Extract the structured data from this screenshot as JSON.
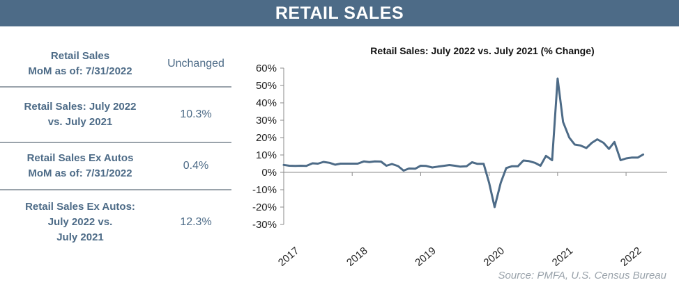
{
  "banner": {
    "title": "RETAIL SALES"
  },
  "stats": [
    {
      "label": "Retail Sales\nMoM as of: 7/31/2022",
      "value": "Unchanged"
    },
    {
      "label": "Retail Sales: July 2022\nvs. July 2021",
      "value": "10.3%"
    },
    {
      "label": "Retail Sales Ex Autos\nMoM as of: 7/31/2022",
      "value": "0.4%"
    },
    {
      "label": "Retail Sales Ex Autos:\nJuly 2022 vs.\nJuly 2021",
      "value": "12.3%"
    }
  ],
  "source": "Source:  PMFA,  U.S. Census Bureau",
  "chart_data": {
    "type": "line",
    "title": "Retail Sales: July 2022 vs. July 2021 (% Change)",
    "xlabel": "",
    "ylabel": "",
    "ylim": [
      -30,
      60
    ],
    "xlim": [
      2017.0,
      2022.6
    ],
    "y_ticks": [
      60,
      50,
      40,
      30,
      20,
      10,
      0,
      -10,
      -20,
      -30
    ],
    "y_tick_labels": [
      "60%",
      "50%",
      "40%",
      "30%",
      "20%",
      "10%",
      "0%",
      "-10%",
      "-20%",
      "-30%"
    ],
    "x_ticks": [
      2017,
      2018,
      2019,
      2020,
      2021,
      2022
    ],
    "x_tick_labels": [
      "2017",
      "2018",
      "2019",
      "2020",
      "2021",
      "2022"
    ],
    "grid": false,
    "line_color": "#4d6b87",
    "series": [
      {
        "values": [
          [
            2017.0,
            4.3
          ],
          [
            2017.08,
            3.8
          ],
          [
            2017.17,
            3.7
          ],
          [
            2017.25,
            3.8
          ],
          [
            2017.33,
            3.7
          ],
          [
            2017.42,
            5.2
          ],
          [
            2017.5,
            5.0
          ],
          [
            2017.58,
            6.0
          ],
          [
            2017.67,
            5.5
          ],
          [
            2017.75,
            4.4
          ],
          [
            2017.83,
            5.0
          ],
          [
            2017.92,
            5.0
          ],
          [
            2018.0,
            5.0
          ],
          [
            2018.08,
            5.0
          ],
          [
            2018.17,
            6.3
          ],
          [
            2018.25,
            5.9
          ],
          [
            2018.33,
            6.3
          ],
          [
            2018.42,
            6.2
          ],
          [
            2018.5,
            3.8
          ],
          [
            2018.58,
            4.8
          ],
          [
            2018.67,
            3.6
          ],
          [
            2018.75,
            1.0
          ],
          [
            2018.83,
            2.2
          ],
          [
            2018.92,
            2.1
          ],
          [
            2019.0,
            3.8
          ],
          [
            2019.08,
            3.7
          ],
          [
            2019.17,
            2.8
          ],
          [
            2019.25,
            3.3
          ],
          [
            2019.33,
            3.7
          ],
          [
            2019.42,
            4.2
          ],
          [
            2019.5,
            3.8
          ],
          [
            2019.58,
            3.3
          ],
          [
            2019.67,
            3.5
          ],
          [
            2019.75,
            5.8
          ],
          [
            2019.83,
            4.9
          ],
          [
            2019.92,
            4.9
          ],
          [
            2020.0,
            -6.0
          ],
          [
            2020.08,
            -20.0
          ],
          [
            2020.17,
            -6.0
          ],
          [
            2020.25,
            2.5
          ],
          [
            2020.33,
            3.5
          ],
          [
            2020.42,
            3.5
          ],
          [
            2020.5,
            6.8
          ],
          [
            2020.58,
            6.5
          ],
          [
            2020.67,
            5.5
          ],
          [
            2020.75,
            3.8
          ],
          [
            2020.83,
            9.5
          ],
          [
            2020.92,
            7.0
          ],
          [
            2021.0,
            54.0
          ],
          [
            2021.08,
            29.0
          ],
          [
            2021.17,
            20.0
          ],
          [
            2021.25,
            16.0
          ],
          [
            2021.33,
            15.5
          ],
          [
            2021.42,
            14.0
          ],
          [
            2021.5,
            17.0
          ],
          [
            2021.58,
            19.0
          ],
          [
            2021.67,
            17.0
          ],
          [
            2021.75,
            13.5
          ],
          [
            2021.83,
            17.5
          ],
          [
            2021.92,
            7.0
          ],
          [
            2022.0,
            8.0
          ],
          [
            2022.08,
            8.5
          ],
          [
            2022.17,
            8.5
          ],
          [
            2022.25,
            10.3
          ]
        ]
      }
    ]
  }
}
